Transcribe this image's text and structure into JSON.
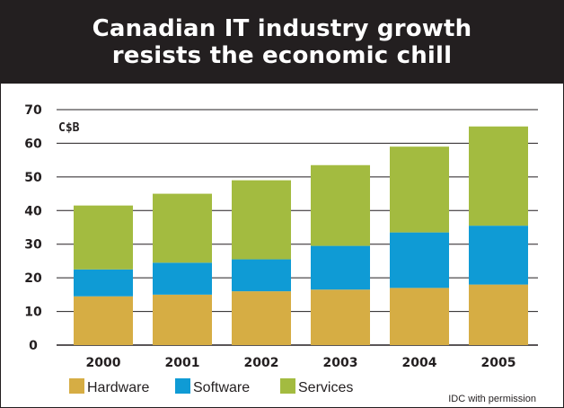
{
  "header": {
    "title_line1": "Canadian IT industry growth",
    "title_line2": "resists the economic chill"
  },
  "source_note": "IDC with permission",
  "colors": {
    "hardware": "#d6ad44",
    "software": "#0f9bd5",
    "services": "#a3bb40",
    "title_background": "#231f20",
    "text": "#231f20"
  },
  "chart_data": {
    "type": "bar",
    "stacked": true,
    "title": "Canadian IT industry growth resists the economic chill",
    "ylabel": "C$B",
    "xlabel": "",
    "categories": [
      "2000",
      "2001",
      "2002",
      "2003",
      "2004",
      "2005"
    ],
    "yticks": [
      "0",
      "10",
      "20",
      "30",
      "40",
      "50",
      "60",
      "70"
    ],
    "ylim": [
      0,
      70
    ],
    "grid": true,
    "legend_position": "bottom-left",
    "series": [
      {
        "name": "Hardware",
        "values": [
          14.5,
          15,
          16,
          16.5,
          17,
          18
        ]
      },
      {
        "name": "Software",
        "values": [
          8,
          9.5,
          9.5,
          13,
          16.5,
          17.5
        ]
      },
      {
        "name": "Services",
        "values": [
          19,
          20.5,
          23.5,
          24,
          25.5,
          29.5
        ]
      }
    ]
  }
}
